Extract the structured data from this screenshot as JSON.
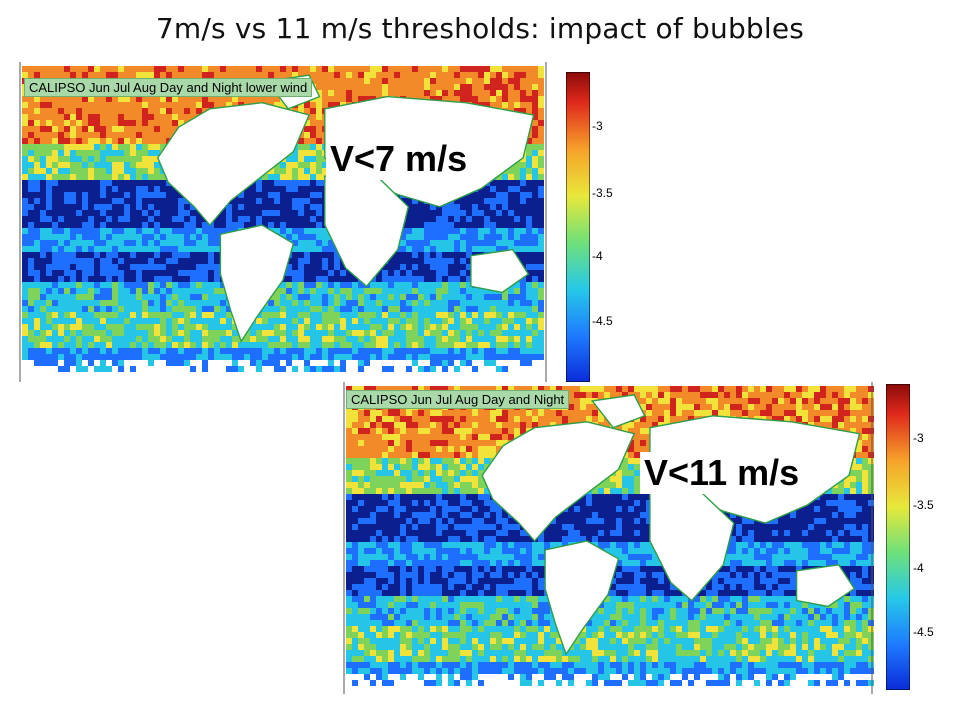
{
  "title": "7m/s vs 11 m/s thresholds: impact of bubbles",
  "colors": {
    "deep_blue": "#0b1f8f",
    "blue": "#1e6fff",
    "cyan": "#25c5e8",
    "green": "#7ed35a",
    "yellow": "#f1e33a",
    "orange": "#f28a2a",
    "red": "#d1241f",
    "land": "#ffffff",
    "coast": "#2e9e4a",
    "label_bg": "#a9d9a9"
  },
  "panels": [
    {
      "map_title": "CALIPSO Jun Jul Aug Day and Night lower wind",
      "wind_label": "V<7 m/s",
      "colorbar": {
        "ticks": [
          "-3",
          "-3.5",
          "-4",
          "-4.5"
        ]
      }
    },
    {
      "map_title": "CALIPSO Jun Jul Aug Day and Night",
      "wind_label": "V<11 m/s",
      "colorbar": {
        "ticks": [
          "-3",
          "-3.5",
          "-4",
          "-4.5"
        ]
      }
    }
  ]
}
